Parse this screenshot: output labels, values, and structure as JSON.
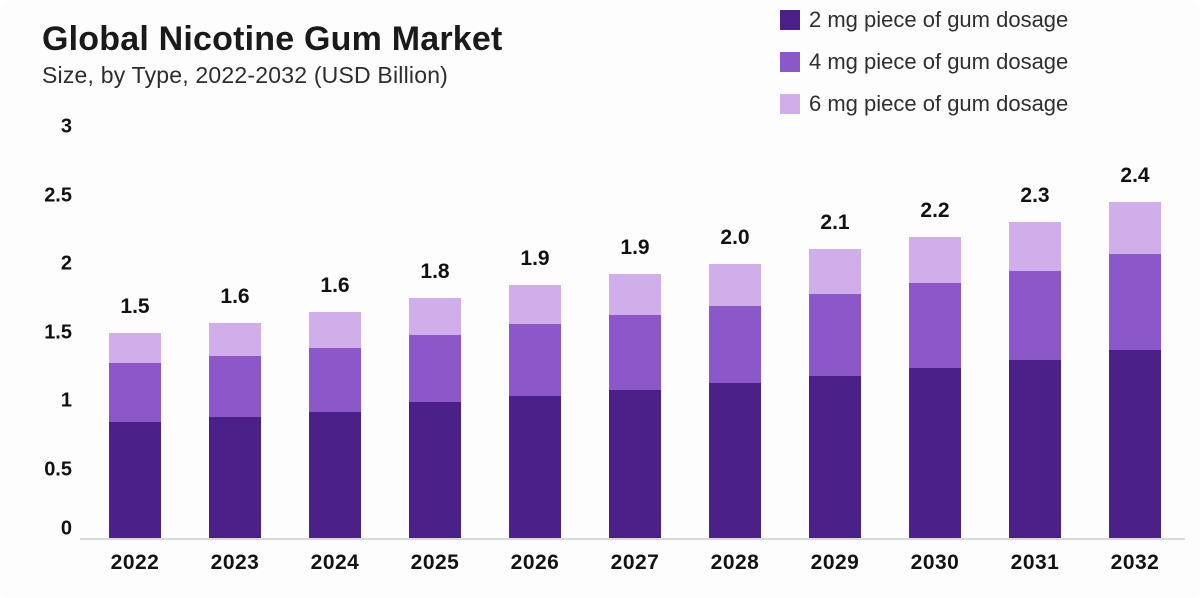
{
  "header": {
    "title": "Global Nicotine Gum Market",
    "subtitle": "Size, by Type, 2022-2032 (USD Billion)"
  },
  "colors": {
    "series_2mg": "#4b2189",
    "series_4mg": "#8c57c8",
    "series_6mg": "#cfaeea",
    "axis_line": "#d9d9d9",
    "label_text": "#111111"
  },
  "chart_data": {
    "type": "bar",
    "stacked": true,
    "title": "Global Nicotine Gum Market",
    "subtitle": "Size, by Type, 2022-2032 (USD Billion)",
    "categories": [
      "2022",
      "2023",
      "2024",
      "2025",
      "2026",
      "2027",
      "2028",
      "2029",
      "2030",
      "2031",
      "2032"
    ],
    "series": [
      {
        "name": "2 mg piece of gum dosage",
        "color": "#4b2189",
        "values": [
          0.85,
          0.88,
          0.92,
          0.99,
          1.04,
          1.08,
          1.13,
          1.18,
          1.24,
          1.3,
          1.37
        ]
      },
      {
        "name": "4 mg piece of gum dosage",
        "color": "#8c57c8",
        "values": [
          0.43,
          0.45,
          0.47,
          0.49,
          0.52,
          0.55,
          0.56,
          0.6,
          0.62,
          0.65,
          0.7
        ]
      },
      {
        "name": "6 mg piece of gum dosage",
        "color": "#cfaeea",
        "values": [
          0.22,
          0.24,
          0.26,
          0.27,
          0.29,
          0.3,
          0.31,
          0.33,
          0.34,
          0.36,
          0.38
        ]
      }
    ],
    "totals_labels": [
      "1.5",
      "1.6",
      "1.6",
      "1.8",
      "1.9",
      "1.9",
      "2.0",
      "2.1",
      "2.2",
      "2.3",
      "2.4"
    ],
    "ylim": [
      0,
      3
    ],
    "yticks": [
      0,
      0.5,
      1,
      1.5,
      2,
      2.5,
      3
    ],
    "ytick_labels": [
      "0",
      "0.5",
      "1",
      "1.5",
      "2",
      "2.5",
      "3"
    ],
    "grid": false,
    "legend_position": "top-right"
  }
}
